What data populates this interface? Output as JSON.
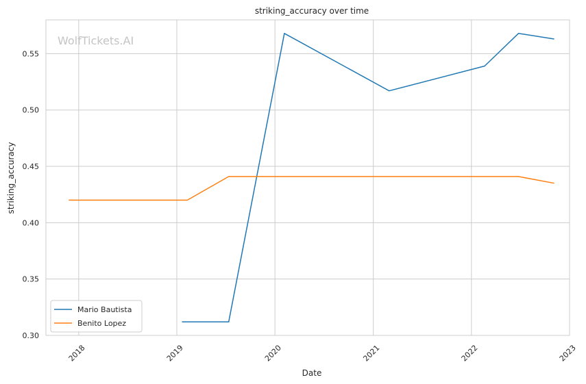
{
  "chart_data": {
    "type": "line",
    "title": "striking_accuracy over time",
    "xlabel": "Date",
    "ylabel": "striking_accuracy",
    "watermark": "WolfTickets.AI",
    "grid": true,
    "legend_position": "lower-left",
    "x_range": [
      "2017-09-01",
      "2023-01-01"
    ],
    "ylim": [
      0.3,
      0.58
    ],
    "x_ticks": [
      "2018",
      "2019",
      "2020",
      "2021",
      "2022",
      "2023"
    ],
    "y_ticks": [
      "0.30",
      "0.35",
      "0.40",
      "0.45",
      "0.50",
      "0.55"
    ],
    "series": [
      {
        "name": "Mario Bautista",
        "color": "#1f77b4",
        "points": [
          {
            "x": "2019-01-20",
            "y": 0.312
          },
          {
            "x": "2019-07-13",
            "y": 0.312
          },
          {
            "x": "2020-02-05",
            "y": 0.568
          },
          {
            "x": "2021-03-01",
            "y": 0.517
          },
          {
            "x": "2022-02-19",
            "y": 0.539
          },
          {
            "x": "2022-06-25",
            "y": 0.568
          },
          {
            "x": "2022-11-05",
            "y": 0.563
          }
        ]
      },
      {
        "name": "Benito Lopez",
        "color": "#ff7f0e",
        "points": [
          {
            "x": "2017-11-25",
            "y": 0.42
          },
          {
            "x": "2019-02-09",
            "y": 0.42
          },
          {
            "x": "2019-07-13",
            "y": 0.441
          },
          {
            "x": "2022-06-25",
            "y": 0.441
          },
          {
            "x": "2022-11-05",
            "y": 0.435
          }
        ]
      }
    ]
  }
}
